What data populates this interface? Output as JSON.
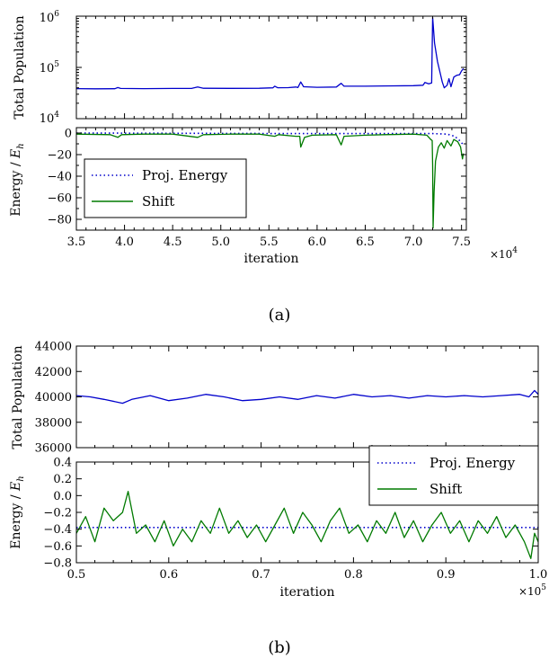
{
  "chart_data": [
    {
      "panel": "a",
      "caption": "(a)",
      "subplots": [
        {
          "type": "line",
          "ylabel": "Total Population",
          "yscale": "log",
          "ylim": [
            10000,
            1000000
          ],
          "ytick_labels": [
            "10^4",
            "10^5",
            "10^6"
          ],
          "xlim": [
            35000,
            75500
          ],
          "series": [
            {
              "color": "#0000cc",
              "style": "solid",
              "points": [
                [
                  35000,
                  38500
                ],
                [
                  37000,
                  38200
                ],
                [
                  39000,
                  38400
                ],
                [
                  39300,
                  40500
                ],
                [
                  39600,
                  38800
                ],
                [
                  42000,
                  38600
                ],
                [
                  45000,
                  38800
                ],
                [
                  47000,
                  39000
                ],
                [
                  47600,
                  41500
                ],
                [
                  48200,
                  39200
                ],
                [
                  51000,
                  39000
                ],
                [
                  54000,
                  39200
                ],
                [
                  55400,
                  40000
                ],
                [
                  55600,
                  43000
                ],
                [
                  55900,
                  40200
                ],
                [
                  57000,
                  40300
                ],
                [
                  57800,
                  41500
                ],
                [
                  58000,
                  40500
                ],
                [
                  58300,
                  52000
                ],
                [
                  58600,
                  42000
                ],
                [
                  60000,
                  41000
                ],
                [
                  62000,
                  41500
                ],
                [
                  62500,
                  49000
                ],
                [
                  62800,
                  43000
                ],
                [
                  65000,
                  43000
                ],
                [
                  67000,
                  43500
                ],
                [
                  70000,
                  44000
                ],
                [
                  71000,
                  45000
                ],
                [
                  71200,
                  51000
                ],
                [
                  71600,
                  48000
                ],
                [
                  71900,
                  50000
                ],
                [
                  72000,
                  950000
                ],
                [
                  72200,
                  300000
                ],
                [
                  72500,
                  130000
                ],
                [
                  72800,
                  75000
                ],
                [
                  73000,
                  52000
                ],
                [
                  73200,
                  40000
                ],
                [
                  73500,
                  45000
                ],
                [
                  73700,
                  60000
                ],
                [
                  73900,
                  42000
                ],
                [
                  74200,
                  65000
                ],
                [
                  74500,
                  70000
                ],
                [
                  74800,
                  72000
                ],
                [
                  75000,
                  85000
                ],
                [
                  75200,
                  95000
                ]
              ]
            }
          ]
        },
        {
          "type": "line",
          "ylabel": "Energy / E_h",
          "ylim": [
            -90,
            5
          ],
          "ytick_labels": [
            "0",
            "−20",
            "−40",
            "−60",
            "−80"
          ],
          "xlabel": "iteration",
          "xlim": [
            35000,
            75500
          ],
          "xtick_labels": [
            "3.5",
            "4.0",
            "4.5",
            "5.0",
            "5.5",
            "6.0",
            "6.5",
            "7.0",
            "7.5"
          ],
          "x_multiplier": "×10^4",
          "legend": {
            "position": "lower-left",
            "entries": [
              "Proj. Energy",
              "Shift"
            ]
          },
          "series": [
            {
              "name": "Proj. Energy",
              "color": "#0000cc",
              "style": "dotted",
              "points": [
                [
                  35000,
                  0
                ],
                [
                  58300,
                  -0.5
                ],
                [
                  62500,
                  -0.5
                ],
                [
                  70000,
                  -0.5
                ],
                [
                  72000,
                  -0.5
                ],
                [
                  73500,
                  -1
                ],
                [
                  74300,
                  -3
                ],
                [
                  74800,
                  -7
                ],
                [
                  75200,
                  -11
                ]
              ]
            },
            {
              "name": "Shift",
              "color": "#007a00",
              "style": "solid",
              "points": [
                [
                  35000,
                  -1
                ],
                [
                  38500,
                  -1.5
                ],
                [
                  39300,
                  -4
                ],
                [
                  39700,
                  -1.5
                ],
                [
                  42000,
                  -1
                ],
                [
                  45000,
                  -1
                ],
                [
                  47600,
                  -4
                ],
                [
                  48200,
                  -1.5
                ],
                [
                  51000,
                  -1
                ],
                [
                  54000,
                  -1
                ],
                [
                  55600,
                  -3
                ],
                [
                  56000,
                  -1.5
                ],
                [
                  57800,
                  -3
                ],
                [
                  58200,
                  -3
                ],
                [
                  58300,
                  -13
                ],
                [
                  58700,
                  -4
                ],
                [
                  59500,
                  -2
                ],
                [
                  62000,
                  -1.5
                ],
                [
                  62500,
                  -11
                ],
                [
                  62800,
                  -3
                ],
                [
                  65000,
                  -2
                ],
                [
                  67000,
                  -1.5
                ],
                [
                  70000,
                  -1
                ],
                [
                  71400,
                  -2
                ],
                [
                  71800,
                  -6
                ],
                [
                  71950,
                  -7
                ],
                [
                  72000,
                  -30
                ],
                [
                  72050,
                  -88
                ],
                [
                  72150,
                  -55
                ],
                [
                  72300,
                  -26
                ],
                [
                  72600,
                  -13
                ],
                [
                  72900,
                  -9
                ],
                [
                  73200,
                  -14
                ],
                [
                  73500,
                  -7
                ],
                [
                  73900,
                  -12
                ],
                [
                  74200,
                  -6
                ],
                [
                  74600,
                  -8
                ],
                [
                  74900,
                  -13
                ],
                [
                  75100,
                  -24
                ],
                [
                  75200,
                  -19
                ]
              ]
            }
          ]
        }
      ]
    },
    {
      "panel": "b",
      "caption": "(b)",
      "subplots": [
        {
          "type": "line",
          "ylabel": "Total Population",
          "ylim": [
            36000,
            44000
          ],
          "ytick_labels": [
            "36000",
            "38000",
            "40000",
            "42000",
            "44000"
          ],
          "xlim": [
            50000,
            100000
          ],
          "series": [
            {
              "color": "#0000cc",
              "style": "solid",
              "points": [
                [
                  50000,
                  40100
                ],
                [
                  51500,
                  40000
                ],
                [
                  53000,
                  39800
                ],
                [
                  55000,
                  39500
                ],
                [
                  56000,
                  39800
                ],
                [
                  58000,
                  40100
                ],
                [
                  60000,
                  39700
                ],
                [
                  62000,
                  39900
                ],
                [
                  64000,
                  40200
                ],
                [
                  66000,
                  40000
                ],
                [
                  68000,
                  39700
                ],
                [
                  70000,
                  39800
                ],
                [
                  72000,
                  40000
                ],
                [
                  74000,
                  39800
                ],
                [
                  76000,
                  40100
                ],
                [
                  78000,
                  39900
                ],
                [
                  80000,
                  40200
                ],
                [
                  82000,
                  40000
                ],
                [
                  84000,
                  40100
                ],
                [
                  86000,
                  39900
                ],
                [
                  88000,
                  40100
                ],
                [
                  90000,
                  40000
                ],
                [
                  92000,
                  40100
                ],
                [
                  94000,
                  40000
                ],
                [
                  96000,
                  40100
                ],
                [
                  98000,
                  40200
                ],
                [
                  99000,
                  40000
                ],
                [
                  99600,
                  40500
                ],
                [
                  100000,
                  40200
                ]
              ]
            }
          ]
        },
        {
          "type": "line",
          "ylabel": "Energy / E_h",
          "ylim": [
            -0.8,
            0.4
          ],
          "ytick_labels": [
            "0.4",
            "0.2",
            "0.0",
            "−0.2",
            "−0.4",
            "−0.6",
            "−0.8"
          ],
          "xlabel": "iteration",
          "xlim": [
            50000,
            100000
          ],
          "xtick_labels": [
            "0.5",
            "0.6",
            "0.7",
            "0.8",
            "0.9",
            "1.0"
          ],
          "x_multiplier": "×10^5",
          "legend": {
            "position": "upper-right",
            "entries": [
              "Proj. Energy",
              "Shift"
            ]
          },
          "series": [
            {
              "name": "Proj. Energy",
              "color": "#0000cc",
              "style": "dotted",
              "points": [
                [
                  50000,
                  -0.38
                ],
                [
                  100000,
                  -0.38
                ]
              ]
            },
            {
              "name": "Shift",
              "color": "#007a00",
              "style": "solid",
              "points": [
                [
                  50000,
                  -0.45
                ],
                [
                  51000,
                  -0.25
                ],
                [
                  52000,
                  -0.55
                ],
                [
                  53000,
                  -0.15
                ],
                [
                  54000,
                  -0.3
                ],
                [
                  55000,
                  -0.2
                ],
                [
                  55600,
                  0.05
                ],
                [
                  56500,
                  -0.45
                ],
                [
                  57500,
                  -0.35
                ],
                [
                  58500,
                  -0.55
                ],
                [
                  59500,
                  -0.3
                ],
                [
                  60500,
                  -0.6
                ],
                [
                  61500,
                  -0.4
                ],
                [
                  62500,
                  -0.55
                ],
                [
                  63500,
                  -0.3
                ],
                [
                  64500,
                  -0.45
                ],
                [
                  65500,
                  -0.15
                ],
                [
                  66500,
                  -0.45
                ],
                [
                  67500,
                  -0.3
                ],
                [
                  68500,
                  -0.5
                ],
                [
                  69500,
                  -0.35
                ],
                [
                  70500,
                  -0.55
                ],
                [
                  71500,
                  -0.35
                ],
                [
                  72500,
                  -0.15
                ],
                [
                  73500,
                  -0.45
                ],
                [
                  74500,
                  -0.2
                ],
                [
                  75500,
                  -0.35
                ],
                [
                  76500,
                  -0.55
                ],
                [
                  77500,
                  -0.3
                ],
                [
                  78500,
                  -0.15
                ],
                [
                  79500,
                  -0.45
                ],
                [
                  80500,
                  -0.35
                ],
                [
                  81500,
                  -0.55
                ],
                [
                  82500,
                  -0.3
                ],
                [
                  83500,
                  -0.45
                ],
                [
                  84500,
                  -0.2
                ],
                [
                  85500,
                  -0.5
                ],
                [
                  86500,
                  -0.3
                ],
                [
                  87500,
                  -0.55
                ],
                [
                  88500,
                  -0.35
                ],
                [
                  89500,
                  -0.2
                ],
                [
                  90500,
                  -0.45
                ],
                [
                  91500,
                  -0.3
                ],
                [
                  92500,
                  -0.55
                ],
                [
                  93500,
                  -0.3
                ],
                [
                  94500,
                  -0.45
                ],
                [
                  95500,
                  -0.25
                ],
                [
                  96500,
                  -0.5
                ],
                [
                  97500,
                  -0.35
                ],
                [
                  98500,
                  -0.55
                ],
                [
                  99200,
                  -0.75
                ],
                [
                  99600,
                  -0.45
                ],
                [
                  100000,
                  -0.55
                ]
              ]
            }
          ]
        }
      ]
    }
  ]
}
